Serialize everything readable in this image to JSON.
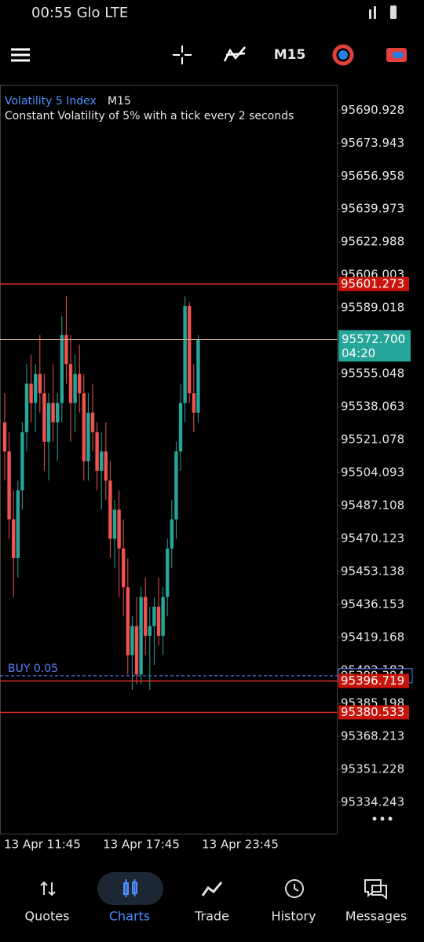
{
  "status_bar": {
    "time_carrier": "00:55 Glo LTE"
  },
  "toolbar": {
    "timeframe": "M15"
  },
  "chart_data": {
    "type": "candlestick",
    "symbol": "Volatility 5 Index",
    "timeframe": "M15",
    "description": "Constant Volatility of 5% with a tick every 2 seconds",
    "up_color": "#26a69a",
    "down_color": "#ef5350",
    "ylim": [
      95318,
      95704
    ],
    "yticks": [
      95690.928,
      95673.943,
      95656.958,
      95639.973,
      95622.988,
      95606.003,
      95589.018,
      95555.048,
      95538.063,
      95521.078,
      95504.093,
      95487.108,
      95470.123,
      95453.138,
      95436.153,
      95419.168,
      95402.183,
      95385.198,
      95368.213,
      95351.228,
      95334.243
    ],
    "xticks": [
      "13 Apr 11:45",
      "13 Apr 17:45",
      "13 Apr 23:45"
    ],
    "ohlc": [
      [
        95530,
        95545,
        95500,
        95515
      ],
      [
        95515,
        95525,
        95470,
        95480
      ],
      [
        95480,
        95495,
        95440,
        95460
      ],
      [
        95460,
        95500,
        95450,
        95495
      ],
      [
        95495,
        95530,
        95485,
        95525
      ],
      [
        95525,
        95560,
        95515,
        95550
      ],
      [
        95550,
        95565,
        95530,
        95540
      ],
      [
        95540,
        95560,
        95525,
        95555
      ],
      [
        95555,
        95575,
        95535,
        95545
      ],
      [
        95545,
        95555,
        95505,
        95520
      ],
      [
        95520,
        95545,
        95500,
        95540
      ],
      [
        95540,
        95560,
        95520,
        95530
      ],
      [
        95530,
        95545,
        95510,
        95540
      ],
      [
        95540,
        95585,
        95530,
        95575
      ],
      [
        95575,
        95595,
        95550,
        95560
      ],
      [
        95560,
        95575,
        95520,
        95540
      ],
      [
        95540,
        95565,
        95525,
        95555
      ],
      [
        95555,
        95570,
        95535,
        95545
      ],
      [
        95545,
        95555,
        95500,
        95510
      ],
      [
        95510,
        95545,
        95500,
        95535
      ],
      [
        95535,
        95550,
        95515,
        95525
      ],
      [
        95525,
        95530,
        95495,
        95505
      ],
      [
        95505,
        95525,
        95485,
        95515
      ],
      [
        95515,
        95530,
        95490,
        95500
      ],
      [
        95500,
        95510,
        95460,
        95470
      ],
      [
        95470,
        95490,
        95455,
        95485
      ],
      [
        95485,
        95495,
        95440,
        95465
      ],
      [
        95465,
        95480,
        95430,
        95445
      ],
      [
        95445,
        95460,
        95400,
        95410
      ],
      [
        95410,
        95430,
        95392,
        95425
      ],
      [
        95425,
        95440,
        95395,
        95400
      ],
      [
        95400,
        95445,
        95395,
        95440
      ],
      [
        95440,
        95450,
        95410,
        95420
      ],
      [
        95420,
        95435,
        95392,
        95425
      ],
      [
        95425,
        95440,
        95405,
        95435
      ],
      [
        95435,
        95450,
        95415,
        95420
      ],
      [
        95420,
        95445,
        95410,
        95440
      ],
      [
        95440,
        95470,
        95430,
        95465
      ],
      [
        95465,
        95490,
        95455,
        95480
      ],
      [
        95480,
        95520,
        95470,
        95515
      ],
      [
        95515,
        95550,
        95505,
        95540
      ],
      [
        95540,
        95595,
        95530,
        95590
      ],
      [
        95590,
        95592,
        95540,
        95545
      ],
      [
        95545,
        95560,
        95525,
        95535
      ],
      [
        95535,
        95575,
        95530,
        95572.7
      ]
    ],
    "levels": [
      95601.273,
      95396.719,
      95380.533
    ],
    "current_price": {
      "value": 95572.7,
      "label": "95572.700"
    },
    "countdown": "04:20",
    "order": {
      "label": "BUY 0.05",
      "price": 95399.394
    }
  },
  "nav": {
    "items": [
      "Quotes",
      "Charts",
      "Trade",
      "History",
      "Messages"
    ],
    "active": 1
  }
}
